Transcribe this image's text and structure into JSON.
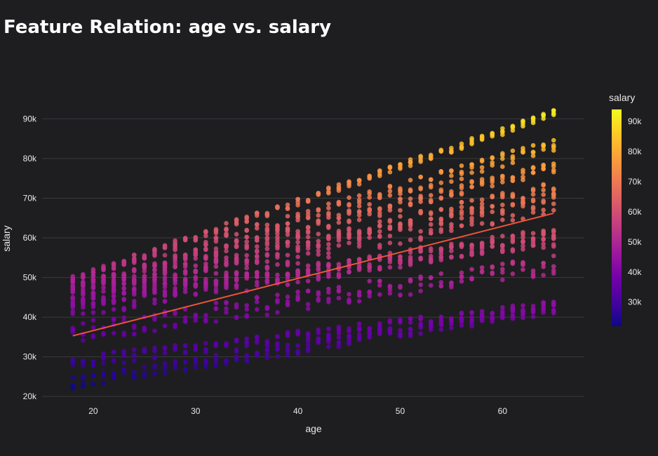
{
  "chart_data": {
    "type": "scatter",
    "title": "Feature Relation: age vs. salary",
    "xlabel": "age",
    "ylabel": "salary",
    "xlim": [
      15,
      68
    ],
    "ylim": [
      19500,
      97500
    ],
    "x_ticks": [
      {
        "value": 20,
        "label": "20"
      },
      {
        "value": 30,
        "label": "30"
      },
      {
        "value": 40,
        "label": "40"
      },
      {
        "value": 50,
        "label": "50"
      },
      {
        "value": 60,
        "label": "60"
      }
    ],
    "y_ticks": [
      {
        "value": 20000,
        "label": "20k"
      },
      {
        "value": 30000,
        "label": "30k"
      },
      {
        "value": 40000,
        "label": "40k"
      },
      {
        "value": 50000,
        "label": "50k"
      },
      {
        "value": 60000,
        "label": "60k"
      },
      {
        "value": 70000,
        "label": "70k"
      },
      {
        "value": 80000,
        "label": "80k"
      },
      {
        "value": 90000,
        "label": "90k"
      }
    ],
    "grid": true,
    "point_color_by": "salary",
    "point_age_range": [
      18,
      65
    ],
    "salary_bands": [
      {
        "base_at_18": 23500,
        "slope_per_year": 400,
        "spread": 3000
      },
      {
        "base_at_18": 28500,
        "slope_per_year": 300,
        "spread": 3000
      },
      {
        "base_at_18": 36000,
        "slope_per_year": 370,
        "spread": 5000
      },
      {
        "base_at_18": 42000,
        "slope_per_year": 400,
        "spread": 4500
      },
      {
        "base_at_18": 44000,
        "slope_per_year": 330,
        "spread": 3500
      },
      {
        "base_at_18": 45000,
        "slope_per_year": 500,
        "spread": 5000
      },
      {
        "base_at_18": 46000,
        "slope_per_year": 560,
        "spread": 3500
      },
      {
        "base_at_18": 47500,
        "slope_per_year": 650,
        "spread": 3000
      },
      {
        "base_at_18": 48500,
        "slope_per_year": 740,
        "spread": 3500
      },
      {
        "base_at_18": 49500,
        "slope_per_year": 890,
        "spread": 1800
      }
    ],
    "trendline": {
      "x": [
        18,
        65
      ],
      "y": [
        35300,
        66200
      ],
      "color": "#ef553b"
    },
    "colorbar": {
      "title": "salary",
      "range": [
        22000,
        94000
      ],
      "ticks": [
        {
          "value": 30000,
          "label": "30k"
        },
        {
          "value": 40000,
          "label": "40k"
        },
        {
          "value": 50000,
          "label": "50k"
        },
        {
          "value": 60000,
          "label": "60k"
        },
        {
          "value": 70000,
          "label": "70k"
        },
        {
          "value": 80000,
          "label": "80k"
        },
        {
          "value": 90000,
          "label": "90k"
        }
      ],
      "colorscale": [
        "#0d0887",
        "#46039f",
        "#7201a8",
        "#9c179e",
        "#bd3786",
        "#d8576b",
        "#ed7953",
        "#fb9f3a",
        "#fdca26",
        "#f0f921"
      ]
    }
  }
}
